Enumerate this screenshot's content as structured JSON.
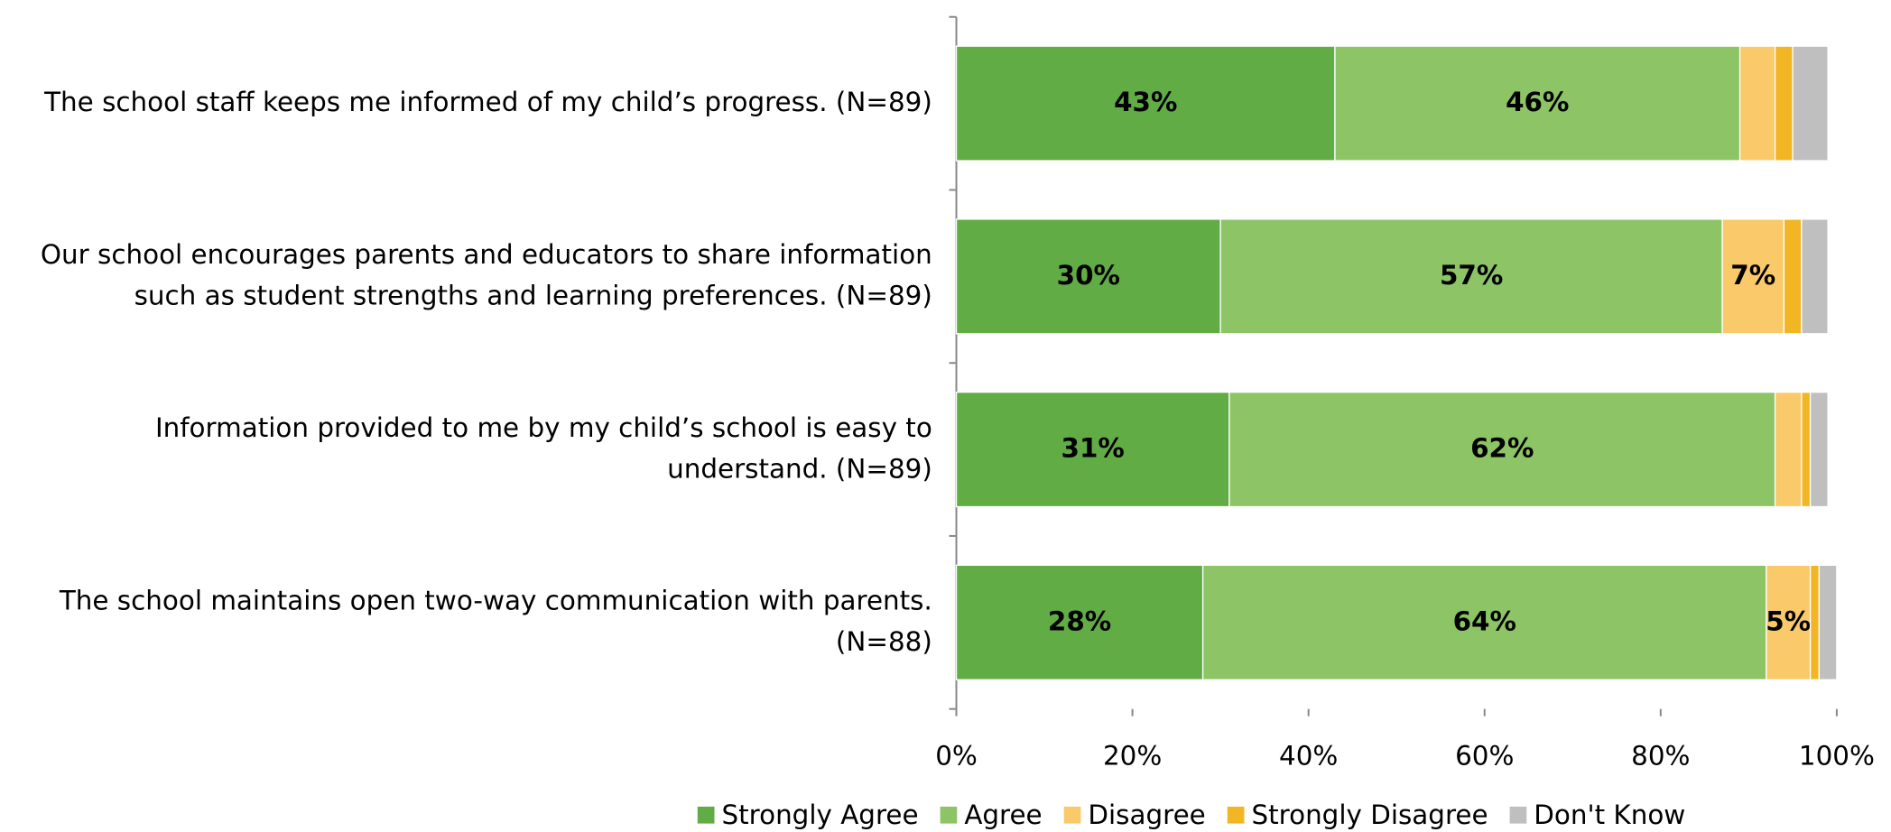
{
  "chart_data": {
    "type": "stacked_bar_horizontal",
    "categories": [
      [
        "The school staff keeps me informed of my child’s progress. (N=89)"
      ],
      [
        "Our school encourages parents and educators to share information",
        "such as student strengths and learning preferences. (N=89)"
      ],
      [
        "Information provided to me by my child’s school is easy to",
        "understand. (N=89)"
      ],
      [
        "The school maintains open two-way communication with parents.",
        "(N=88)"
      ]
    ],
    "series": [
      {
        "name": "Strongly Agree",
        "color": "#62ac46",
        "values": [
          43,
          30,
          31,
          28
        ],
        "value_labels": [
          "43%",
          "30%",
          "31%",
          "28%"
        ]
      },
      {
        "name": "Agree",
        "color": "#8cc466",
        "values": [
          46,
          57,
          62,
          64
        ],
        "value_labels": [
          "46%",
          "57%",
          "62%",
          "64%"
        ]
      },
      {
        "name": "Disagree",
        "color": "#f9c96a",
        "values": [
          4,
          7,
          3,
          5
        ],
        "value_labels": [
          null,
          "7%",
          null,
          "5%"
        ]
      },
      {
        "name": "Strongly Disagree",
        "color": "#f2b625",
        "values": [
          2,
          2,
          1,
          1
        ],
        "value_labels": [
          null,
          null,
          null,
          null
        ]
      },
      {
        "name": "Don't Know",
        "color": "#bfbfbf",
        "values": [
          4,
          3,
          2,
          2
        ],
        "value_labels": [
          null,
          null,
          null,
          null
        ]
      }
    ],
    "xlim": [
      0,
      100
    ],
    "xticks": [
      {
        "value": 0,
        "label": "0%"
      },
      {
        "value": 20,
        "label": "20%"
      },
      {
        "value": 40,
        "label": "40%"
      },
      {
        "value": 60,
        "label": "60%"
      },
      {
        "value": 80,
        "label": "80%"
      },
      {
        "value": 100,
        "label": "100%"
      }
    ],
    "legend": "bottom"
  }
}
